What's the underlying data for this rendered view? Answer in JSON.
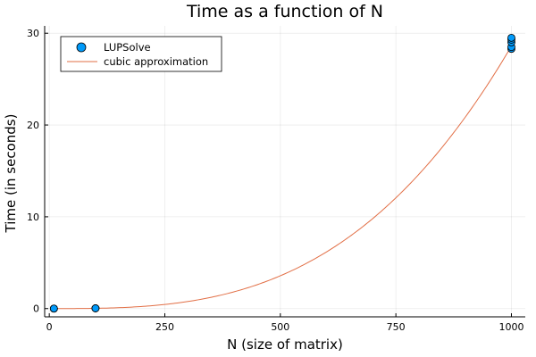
{
  "chart_data": {
    "type": "scatter",
    "title": "Time as a function of N",
    "xlabel": "N (size of matrix)",
    "ylabel": "Time (in seconds)",
    "xlim": [
      -10,
      1030
    ],
    "ylim": [
      -0.9,
      30.8
    ],
    "x_ticks": [
      0,
      250,
      500,
      750,
      1000
    ],
    "x_tick_labels": [
      "0",
      "250",
      "500",
      "750",
      "1000"
    ],
    "y_ticks": [
      0,
      10,
      20,
      30
    ],
    "y_tick_labels": [
      "0",
      "10",
      "20",
      "30"
    ],
    "grid": true,
    "legend_position": "top-left",
    "series": [
      {
        "name": "LUPSolve",
        "kind": "scatter",
        "color": "#009AFA",
        "x": [
          10,
          10,
          10,
          100,
          100,
          100,
          1000,
          1000,
          1000,
          1000,
          1000
        ],
        "y": [
          0.0,
          0.0,
          0.0,
          0.03,
          0.03,
          0.03,
          28.3,
          28.5,
          29.0,
          29.3,
          29.5
        ]
      },
      {
        "name": "cubic approximation",
        "kind": "line",
        "color": "#E26F46",
        "model": "t = c * N^3",
        "coefficient": 2.86e-08,
        "x_range": [
          10,
          1000
        ]
      }
    ]
  }
}
